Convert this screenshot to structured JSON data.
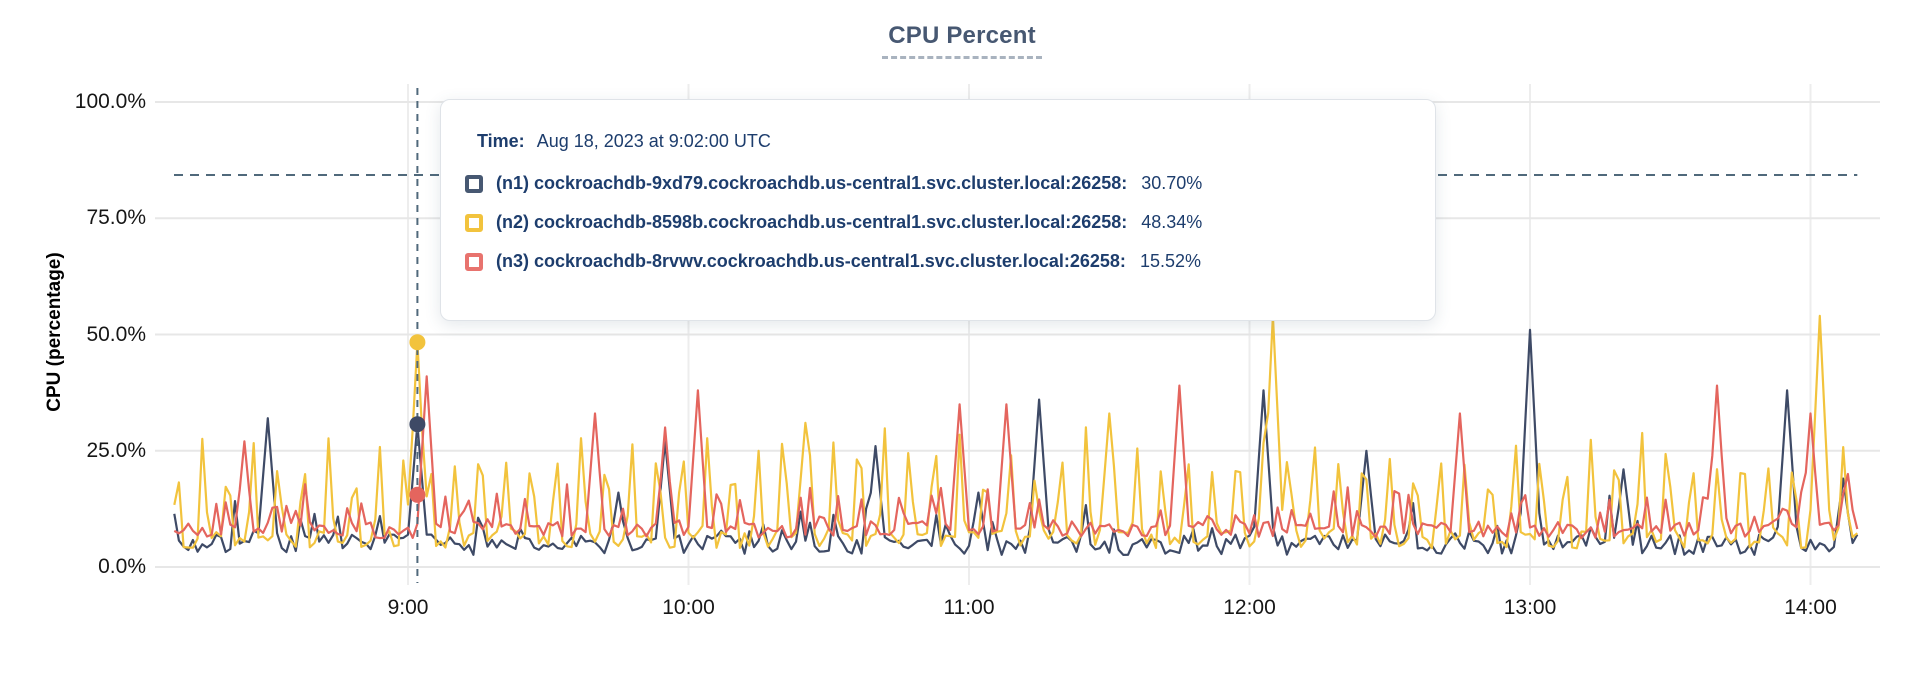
{
  "chart_data": {
    "type": "line",
    "title": "CPU Percent",
    "ylabel": "CPU (percentage)",
    "xlabel": "",
    "ylim": [
      0,
      100
    ],
    "y_ticks": [
      "100.0%",
      "75.0%",
      "50.0%",
      "25.0%",
      "0.0%"
    ],
    "y_tick_values": [
      100,
      75,
      50,
      25,
      0
    ],
    "x_ticks": [
      "9:00",
      "10:00",
      "11:00",
      "12:00",
      "13:00",
      "14:00"
    ],
    "x_start_time": "8:10",
    "x_end_time": "14:10",
    "grid": true,
    "legend_position": "tooltip-overlay",
    "series": [
      {
        "name": "(n1) cockroachdb-9xd79.cockroachdb.us-central1.svc.cluster.local:26258",
        "color": "#475872",
        "line_color": "#3e4a66",
        "base": 4.8,
        "jitter": 2.2,
        "spike_prob": 0.13,
        "spike_max": 9,
        "seed": 7,
        "peaks_min_value": [
          [
            20,
            32
          ],
          [
            52,
            30.7
          ],
          [
            95,
            16
          ],
          [
            105,
            27
          ],
          [
            150,
            26
          ],
          [
            172,
            16
          ],
          [
            185,
            36
          ],
          [
            233,
            38
          ],
          [
            255,
            25
          ],
          [
            290,
            51
          ],
          [
            310,
            21
          ],
          [
            345,
            38
          ],
          [
            357,
            19
          ]
        ]
      },
      {
        "name": "(n2) cockroachdb-8598b.cockroachdb.us-central1.svc.cluster.local:26258",
        "color": "#f2c33d",
        "line_color": "#f2c33d",
        "base": 6,
        "jitter": 2.0,
        "period": 5.4,
        "phase": 2,
        "amp_lo": 17,
        "amp_hi": 26,
        "seed": 13,
        "peaks_min_value": [
          [
            52,
            48.34
          ],
          [
            135,
            31
          ],
          [
            200,
            33
          ],
          [
            235,
            54
          ],
          [
            352,
            54
          ]
        ]
      },
      {
        "name": "(n3) cockroachdb-8rvwv.cockroachdb.us-central1.svc.cluster.local:26258",
        "color": "#e8736e",
        "line_color": "#e4655e",
        "base": 8,
        "jitter": 1.8,
        "spike_prob": 0.22,
        "spike_max": 9,
        "seed": 21,
        "peaks_min_value": [
          [
            15,
            27
          ],
          [
            54,
            41
          ],
          [
            90,
            33
          ],
          [
            105,
            30
          ],
          [
            112,
            38
          ],
          [
            168,
            35
          ],
          [
            178,
            35
          ],
          [
            215,
            39
          ],
          [
            275,
            33
          ],
          [
            330,
            39
          ],
          [
            350,
            33
          ],
          [
            358,
            20
          ]
        ]
      }
    ],
    "crosshair": {
      "time_label": "9:02",
      "x_minutes_from_start": 52,
      "hline_pct": 84.3,
      "values_pct": [
        30.7,
        48.34,
        15.52
      ],
      "color": "#50697b"
    }
  },
  "tooltip": {
    "time_label": "Time:",
    "time_value": "Aug 18, 2023 at 9:02:00 UTC",
    "rows": [
      {
        "label": "(n1) cockroachdb-9xd79.cockroachdb.us-central1.svc.cluster.local:26258:",
        "value": "30.70%",
        "color": "#475872"
      },
      {
        "label": "(n2) cockroachdb-8598b.cockroachdb.us-central1.svc.cluster.local:26258:",
        "value": "48.34%",
        "color": "#f2c33d"
      },
      {
        "label": "(n3) cockroachdb-8rvwv.cockroachdb.us-central1.svc.cluster.local:26258:",
        "value": "15.52%",
        "color": "#e8736e"
      }
    ]
  }
}
